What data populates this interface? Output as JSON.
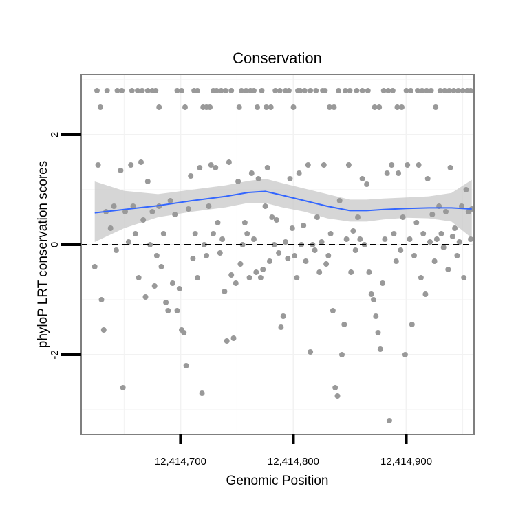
{
  "chart_data": {
    "type": "scatter",
    "title": "Conservation",
    "xlabel": "Genomic Position",
    "ylabel": "phyloP LRT conservation scores",
    "xlim": [
      12414612,
      12414960
    ],
    "ylim": [
      -3.45,
      3.1
    ],
    "x_ticks": [
      12414700,
      12414800,
      12414900
    ],
    "x_tick_labels": [
      "12,414,700",
      "12,414,800",
      "12,414,900"
    ],
    "y_ticks": [
      -2,
      0,
      2
    ],
    "y_tick_labels": [
      "-2",
      "0",
      "2"
    ],
    "grid": true,
    "reference_line": {
      "y": 0,
      "style": "dashed",
      "color": "#000000"
    },
    "colors": {
      "points": "#999999",
      "smooth_line": "#3366ff",
      "confidence_band": "#c8c8c8",
      "panel_border": "#7f7f7f",
      "grid": "#f2f2f2"
    },
    "points": [
      {
        "x": 12414626,
        "y": 2.8
      },
      {
        "x": 12414629,
        "y": 2.5
      },
      {
        "x": 12414635,
        "y": 2.8
      },
      {
        "x": 12414644,
        "y": 2.8
      },
      {
        "x": 12414648,
        "y": 2.8
      },
      {
        "x": 12414657,
        "y": 2.8
      },
      {
        "x": 12414662,
        "y": 2.8
      },
      {
        "x": 12414666,
        "y": 2.8
      },
      {
        "x": 12414671,
        "y": 2.8
      },
      {
        "x": 12414675,
        "y": 2.8
      },
      {
        "x": 12414678,
        "y": 2.8
      },
      {
        "x": 12414681,
        "y": 2.5
      },
      {
        "x": 12414697,
        "y": 2.8
      },
      {
        "x": 12414701,
        "y": 2.8
      },
      {
        "x": 12414704,
        "y": 2.5
      },
      {
        "x": 12414712,
        "y": 2.8
      },
      {
        "x": 12414715,
        "y": 2.8
      },
      {
        "x": 12414720,
        "y": 2.5
      },
      {
        "x": 12414723,
        "y": 2.5
      },
      {
        "x": 12414726,
        "y": 2.5
      },
      {
        "x": 12414729,
        "y": 2.8
      },
      {
        "x": 12414732,
        "y": 2.8
      },
      {
        "x": 12414736,
        "y": 2.8
      },
      {
        "x": 12414740,
        "y": 2.8
      },
      {
        "x": 12414745,
        "y": 2.8
      },
      {
        "x": 12414752,
        "y": 2.5
      },
      {
        "x": 12414754,
        "y": 2.8
      },
      {
        "x": 12414758,
        "y": 2.8
      },
      {
        "x": 12414762,
        "y": 2.8
      },
      {
        "x": 12414765,
        "y": 2.8
      },
      {
        "x": 12414768,
        "y": 2.5
      },
      {
        "x": 12414772,
        "y": 2.8
      },
      {
        "x": 12414776,
        "y": 2.5
      },
      {
        "x": 12414780,
        "y": 2.5
      },
      {
        "x": 12414784,
        "y": 2.8
      },
      {
        "x": 12414788,
        "y": 2.8
      },
      {
        "x": 12414793,
        "y": 2.8
      },
      {
        "x": 12414796,
        "y": 2.8
      },
      {
        "x": 12414800,
        "y": 2.5
      },
      {
        "x": 12414804,
        "y": 2.8
      },
      {
        "x": 12414806,
        "y": 2.8
      },
      {
        "x": 12414810,
        "y": 2.8
      },
      {
        "x": 12414815,
        "y": 2.8
      },
      {
        "x": 12414820,
        "y": 2.8
      },
      {
        "x": 12414826,
        "y": 2.8
      },
      {
        "x": 12414828,
        "y": 2.8
      },
      {
        "x": 12414832,
        "y": 2.5
      },
      {
        "x": 12414836,
        "y": 2.5
      },
      {
        "x": 12414840,
        "y": 2.8
      },
      {
        "x": 12414846,
        "y": 2.8
      },
      {
        "x": 12414850,
        "y": 2.8
      },
      {
        "x": 12414856,
        "y": 2.8
      },
      {
        "x": 12414861,
        "y": 2.8
      },
      {
        "x": 12414866,
        "y": 2.8
      },
      {
        "x": 12414872,
        "y": 2.5
      },
      {
        "x": 12414876,
        "y": 2.5
      },
      {
        "x": 12414880,
        "y": 2.8
      },
      {
        "x": 12414884,
        "y": 2.8
      },
      {
        "x": 12414888,
        "y": 2.8
      },
      {
        "x": 12414892,
        "y": 2.5
      },
      {
        "x": 12414896,
        "y": 2.5
      },
      {
        "x": 12414900,
        "y": 2.8
      },
      {
        "x": 12414904,
        "y": 2.8
      },
      {
        "x": 12414910,
        "y": 2.8
      },
      {
        "x": 12414914,
        "y": 2.8
      },
      {
        "x": 12414918,
        "y": 2.8
      },
      {
        "x": 12414922,
        "y": 2.8
      },
      {
        "x": 12414926,
        "y": 2.5
      },
      {
        "x": 12414930,
        "y": 2.8
      },
      {
        "x": 12414934,
        "y": 2.8
      },
      {
        "x": 12414938,
        "y": 2.8
      },
      {
        "x": 12414942,
        "y": 2.8
      },
      {
        "x": 12414946,
        "y": 2.8
      },
      {
        "x": 12414950,
        "y": 2.8
      },
      {
        "x": 12414954,
        "y": 2.8
      },
      {
        "x": 12414957,
        "y": 2.8
      },
      {
        "x": 12414624,
        "y": -0.4
      },
      {
        "x": 12414627,
        "y": 1.45
      },
      {
        "x": 12414630,
        "y": -1.0
      },
      {
        "x": 12414632,
        "y": -1.55
      },
      {
        "x": 12414634,
        "y": 0.6
      },
      {
        "x": 12414638,
        "y": 0.3
      },
      {
        "x": 12414641,
        "y": 0.7
      },
      {
        "x": 12414643,
        "y": -0.1
      },
      {
        "x": 12414647,
        "y": 1.35
      },
      {
        "x": 12414649,
        "y": -2.6
      },
      {
        "x": 12414651,
        "y": 0.6
      },
      {
        "x": 12414654,
        "y": 0.05
      },
      {
        "x": 12414656,
        "y": 1.45
      },
      {
        "x": 12414658,
        "y": 0.7
      },
      {
        "x": 12414660,
        "y": 0.2
      },
      {
        "x": 12414663,
        "y": -0.6
      },
      {
        "x": 12414665,
        "y": 1.5
      },
      {
        "x": 12414667,
        "y": 0.45
      },
      {
        "x": 12414669,
        "y": -0.95
      },
      {
        "x": 12414671,
        "y": 1.15
      },
      {
        "x": 12414673,
        "y": 0.0
      },
      {
        "x": 12414675,
        "y": 0.6
      },
      {
        "x": 12414677,
        "y": -0.75
      },
      {
        "x": 12414679,
        "y": -0.2
      },
      {
        "x": 12414681,
        "y": 0.7
      },
      {
        "x": 12414683,
        "y": -0.4
      },
      {
        "x": 12414685,
        "y": 0.2
      },
      {
        "x": 12414687,
        "y": -1.05
      },
      {
        "x": 12414689,
        "y": -1.2
      },
      {
        "x": 12414691,
        "y": 0.8
      },
      {
        "x": 12414693,
        "y": -0.7
      },
      {
        "x": 12414695,
        "y": 0.55
      },
      {
        "x": 12414697,
        "y": -1.2
      },
      {
        "x": 12414699,
        "y": -0.8
      },
      {
        "x": 12414701,
        "y": -1.55
      },
      {
        "x": 12414703,
        "y": -1.6
      },
      {
        "x": 12414705,
        "y": -2.2
      },
      {
        "x": 12414707,
        "y": 0.65
      },
      {
        "x": 12414709,
        "y": 1.25
      },
      {
        "x": 12414711,
        "y": -0.25
      },
      {
        "x": 12414713,
        "y": 0.2
      },
      {
        "x": 12414715,
        "y": -0.6
      },
      {
        "x": 12414717,
        "y": 1.4
      },
      {
        "x": 12414719,
        "y": -2.7
      },
      {
        "x": 12414721,
        "y": 0.0
      },
      {
        "x": 12414723,
        "y": -0.2
      },
      {
        "x": 12414725,
        "y": 0.7
      },
      {
        "x": 12414727,
        "y": 1.45
      },
      {
        "x": 12414729,
        "y": 0.2
      },
      {
        "x": 12414731,
        "y": 1.4
      },
      {
        "x": 12414733,
        "y": 0.4
      },
      {
        "x": 12414735,
        "y": -0.15
      },
      {
        "x": 12414737,
        "y": 0.1
      },
      {
        "x": 12414739,
        "y": -0.85
      },
      {
        "x": 12414741,
        "y": -1.75
      },
      {
        "x": 12414743,
        "y": 1.5
      },
      {
        "x": 12414745,
        "y": -0.55
      },
      {
        "x": 12414747,
        "y": -1.7
      },
      {
        "x": 12414749,
        "y": -0.7
      },
      {
        "x": 12414751,
        "y": 1.15
      },
      {
        "x": 12414753,
        "y": -0.35
      },
      {
        "x": 12414755,
        "y": 0.0
      },
      {
        "x": 12414757,
        "y": 0.4
      },
      {
        "x": 12414759,
        "y": 0.2
      },
      {
        "x": 12414761,
        "y": -0.6
      },
      {
        "x": 12414763,
        "y": 1.3
      },
      {
        "x": 12414765,
        "y": 0.1
      },
      {
        "x": 12414767,
        "y": -0.5
      },
      {
        "x": 12414769,
        "y": 1.2
      },
      {
        "x": 12414771,
        "y": -0.6
      },
      {
        "x": 12414773,
        "y": -0.45
      },
      {
        "x": 12414775,
        "y": 0.7
      },
      {
        "x": 12414777,
        "y": 1.4
      },
      {
        "x": 12414779,
        "y": -0.3
      },
      {
        "x": 12414781,
        "y": 0.5
      },
      {
        "x": 12414783,
        "y": 0.0
      },
      {
        "x": 12414785,
        "y": 0.45
      },
      {
        "x": 12414787,
        "y": -0.15
      },
      {
        "x": 12414789,
        "y": -1.5
      },
      {
        "x": 12414791,
        "y": -1.3
      },
      {
        "x": 12414793,
        "y": 0.05
      },
      {
        "x": 12414795,
        "y": -0.25
      },
      {
        "x": 12414797,
        "y": 1.2
      },
      {
        "x": 12414799,
        "y": 0.3
      },
      {
        "x": 12414801,
        "y": -0.2
      },
      {
        "x": 12414803,
        "y": -0.6
      },
      {
        "x": 12414805,
        "y": 1.3
      },
      {
        "x": 12414807,
        "y": 0.0
      },
      {
        "x": 12414809,
        "y": 0.35
      },
      {
        "x": 12414811,
        "y": -0.3
      },
      {
        "x": 12414813,
        "y": 1.45
      },
      {
        "x": 12414815,
        "y": -1.95
      },
      {
        "x": 12414817,
        "y": 0.0
      },
      {
        "x": 12414819,
        "y": -0.1
      },
      {
        "x": 12414821,
        "y": 0.5
      },
      {
        "x": 12414823,
        "y": -0.5
      },
      {
        "x": 12414825,
        "y": 0.05
      },
      {
        "x": 12414827,
        "y": 1.45
      },
      {
        "x": 12414829,
        "y": -0.35
      },
      {
        "x": 12414831,
        "y": -0.2
      },
      {
        "x": 12414833,
        "y": 0.2
      },
      {
        "x": 12414835,
        "y": -1.2
      },
      {
        "x": 12414837,
        "y": -2.6
      },
      {
        "x": 12414839,
        "y": -2.75
      },
      {
        "x": 12414841,
        "y": 0.8
      },
      {
        "x": 12414843,
        "y": -2.0
      },
      {
        "x": 12414845,
        "y": -1.45
      },
      {
        "x": 12414847,
        "y": 0.1
      },
      {
        "x": 12414849,
        "y": 1.45
      },
      {
        "x": 12414851,
        "y": -0.5
      },
      {
        "x": 12414853,
        "y": 0.25
      },
      {
        "x": 12414855,
        "y": -0.1
      },
      {
        "x": 12414857,
        "y": 0.5
      },
      {
        "x": 12414859,
        "y": 0.1
      },
      {
        "x": 12414861,
        "y": 1.2
      },
      {
        "x": 12414863,
        "y": 0.0
      },
      {
        "x": 12414865,
        "y": 1.1
      },
      {
        "x": 12414867,
        "y": -0.5
      },
      {
        "x": 12414869,
        "y": -0.9
      },
      {
        "x": 12414871,
        "y": -1.0
      },
      {
        "x": 12414873,
        "y": -1.3
      },
      {
        "x": 12414875,
        "y": -1.6
      },
      {
        "x": 12414877,
        "y": -1.9
      },
      {
        "x": 12414879,
        "y": -0.7
      },
      {
        "x": 12414881,
        "y": 0.1
      },
      {
        "x": 12414883,
        "y": 1.3
      },
      {
        "x": 12414885,
        "y": -3.2
      },
      {
        "x": 12414887,
        "y": 1.45
      },
      {
        "x": 12414889,
        "y": 0.2
      },
      {
        "x": 12414891,
        "y": -0.3
      },
      {
        "x": 12414893,
        "y": 1.3
      },
      {
        "x": 12414895,
        "y": -0.1
      },
      {
        "x": 12414897,
        "y": 0.5
      },
      {
        "x": 12414899,
        "y": -2.0
      },
      {
        "x": 12414901,
        "y": 1.45
      },
      {
        "x": 12414903,
        "y": 0.1
      },
      {
        "x": 12414905,
        "y": -1.45
      },
      {
        "x": 12414907,
        "y": -0.2
      },
      {
        "x": 12414909,
        "y": 0.4
      },
      {
        "x": 12414911,
        "y": 1.45
      },
      {
        "x": 12414913,
        "y": -0.6
      },
      {
        "x": 12414915,
        "y": 0.2
      },
      {
        "x": 12414917,
        "y": -0.9
      },
      {
        "x": 12414919,
        "y": 1.2
      },
      {
        "x": 12414921,
        "y": 0.05
      },
      {
        "x": 12414923,
        "y": 0.55
      },
      {
        "x": 12414925,
        "y": -0.3
      },
      {
        "x": 12414927,
        "y": 0.1
      },
      {
        "x": 12414929,
        "y": 0.7
      },
      {
        "x": 12414931,
        "y": 0.2
      },
      {
        "x": 12414933,
        "y": -0.05
      },
      {
        "x": 12414935,
        "y": 0.6
      },
      {
        "x": 12414937,
        "y": -0.45
      },
      {
        "x": 12414939,
        "y": 1.4
      },
      {
        "x": 12414941,
        "y": 0.15
      },
      {
        "x": 12414943,
        "y": 0.3
      },
      {
        "x": 12414945,
        "y": -0.2
      },
      {
        "x": 12414947,
        "y": 0.05
      },
      {
        "x": 12414949,
        "y": 0.7
      },
      {
        "x": 12414951,
        "y": -0.6
      },
      {
        "x": 12414953,
        "y": 1.0
      },
      {
        "x": 12414955,
        "y": 0.6
      },
      {
        "x": 12414957,
        "y": 0.1
      },
      {
        "x": 12414958,
        "y": 0.65
      }
    ],
    "smooth_line": {
      "x": [
        12414624,
        12414650,
        12414680,
        12414710,
        12414740,
        12414760,
        12414775,
        12414790,
        12414810,
        12414830,
        12414850,
        12414865,
        12414880,
        12414900,
        12414920,
        12414940,
        12414958
      ],
      "y": [
        0.58,
        0.64,
        0.71,
        0.8,
        0.88,
        0.95,
        0.97,
        0.9,
        0.8,
        0.7,
        0.62,
        0.62,
        0.64,
        0.66,
        0.67,
        0.67,
        0.65
      ],
      "lower": [
        0.05,
        0.3,
        0.5,
        0.6,
        0.68,
        0.76,
        0.76,
        0.68,
        0.6,
        0.48,
        0.42,
        0.42,
        0.46,
        0.49,
        0.48,
        0.42,
        0.12
      ],
      "upper": [
        1.15,
        0.98,
        0.92,
        1.0,
        1.08,
        1.16,
        1.2,
        1.12,
        1.02,
        0.92,
        0.82,
        0.82,
        0.84,
        0.86,
        0.88,
        0.94,
        1.18
      ]
    }
  }
}
